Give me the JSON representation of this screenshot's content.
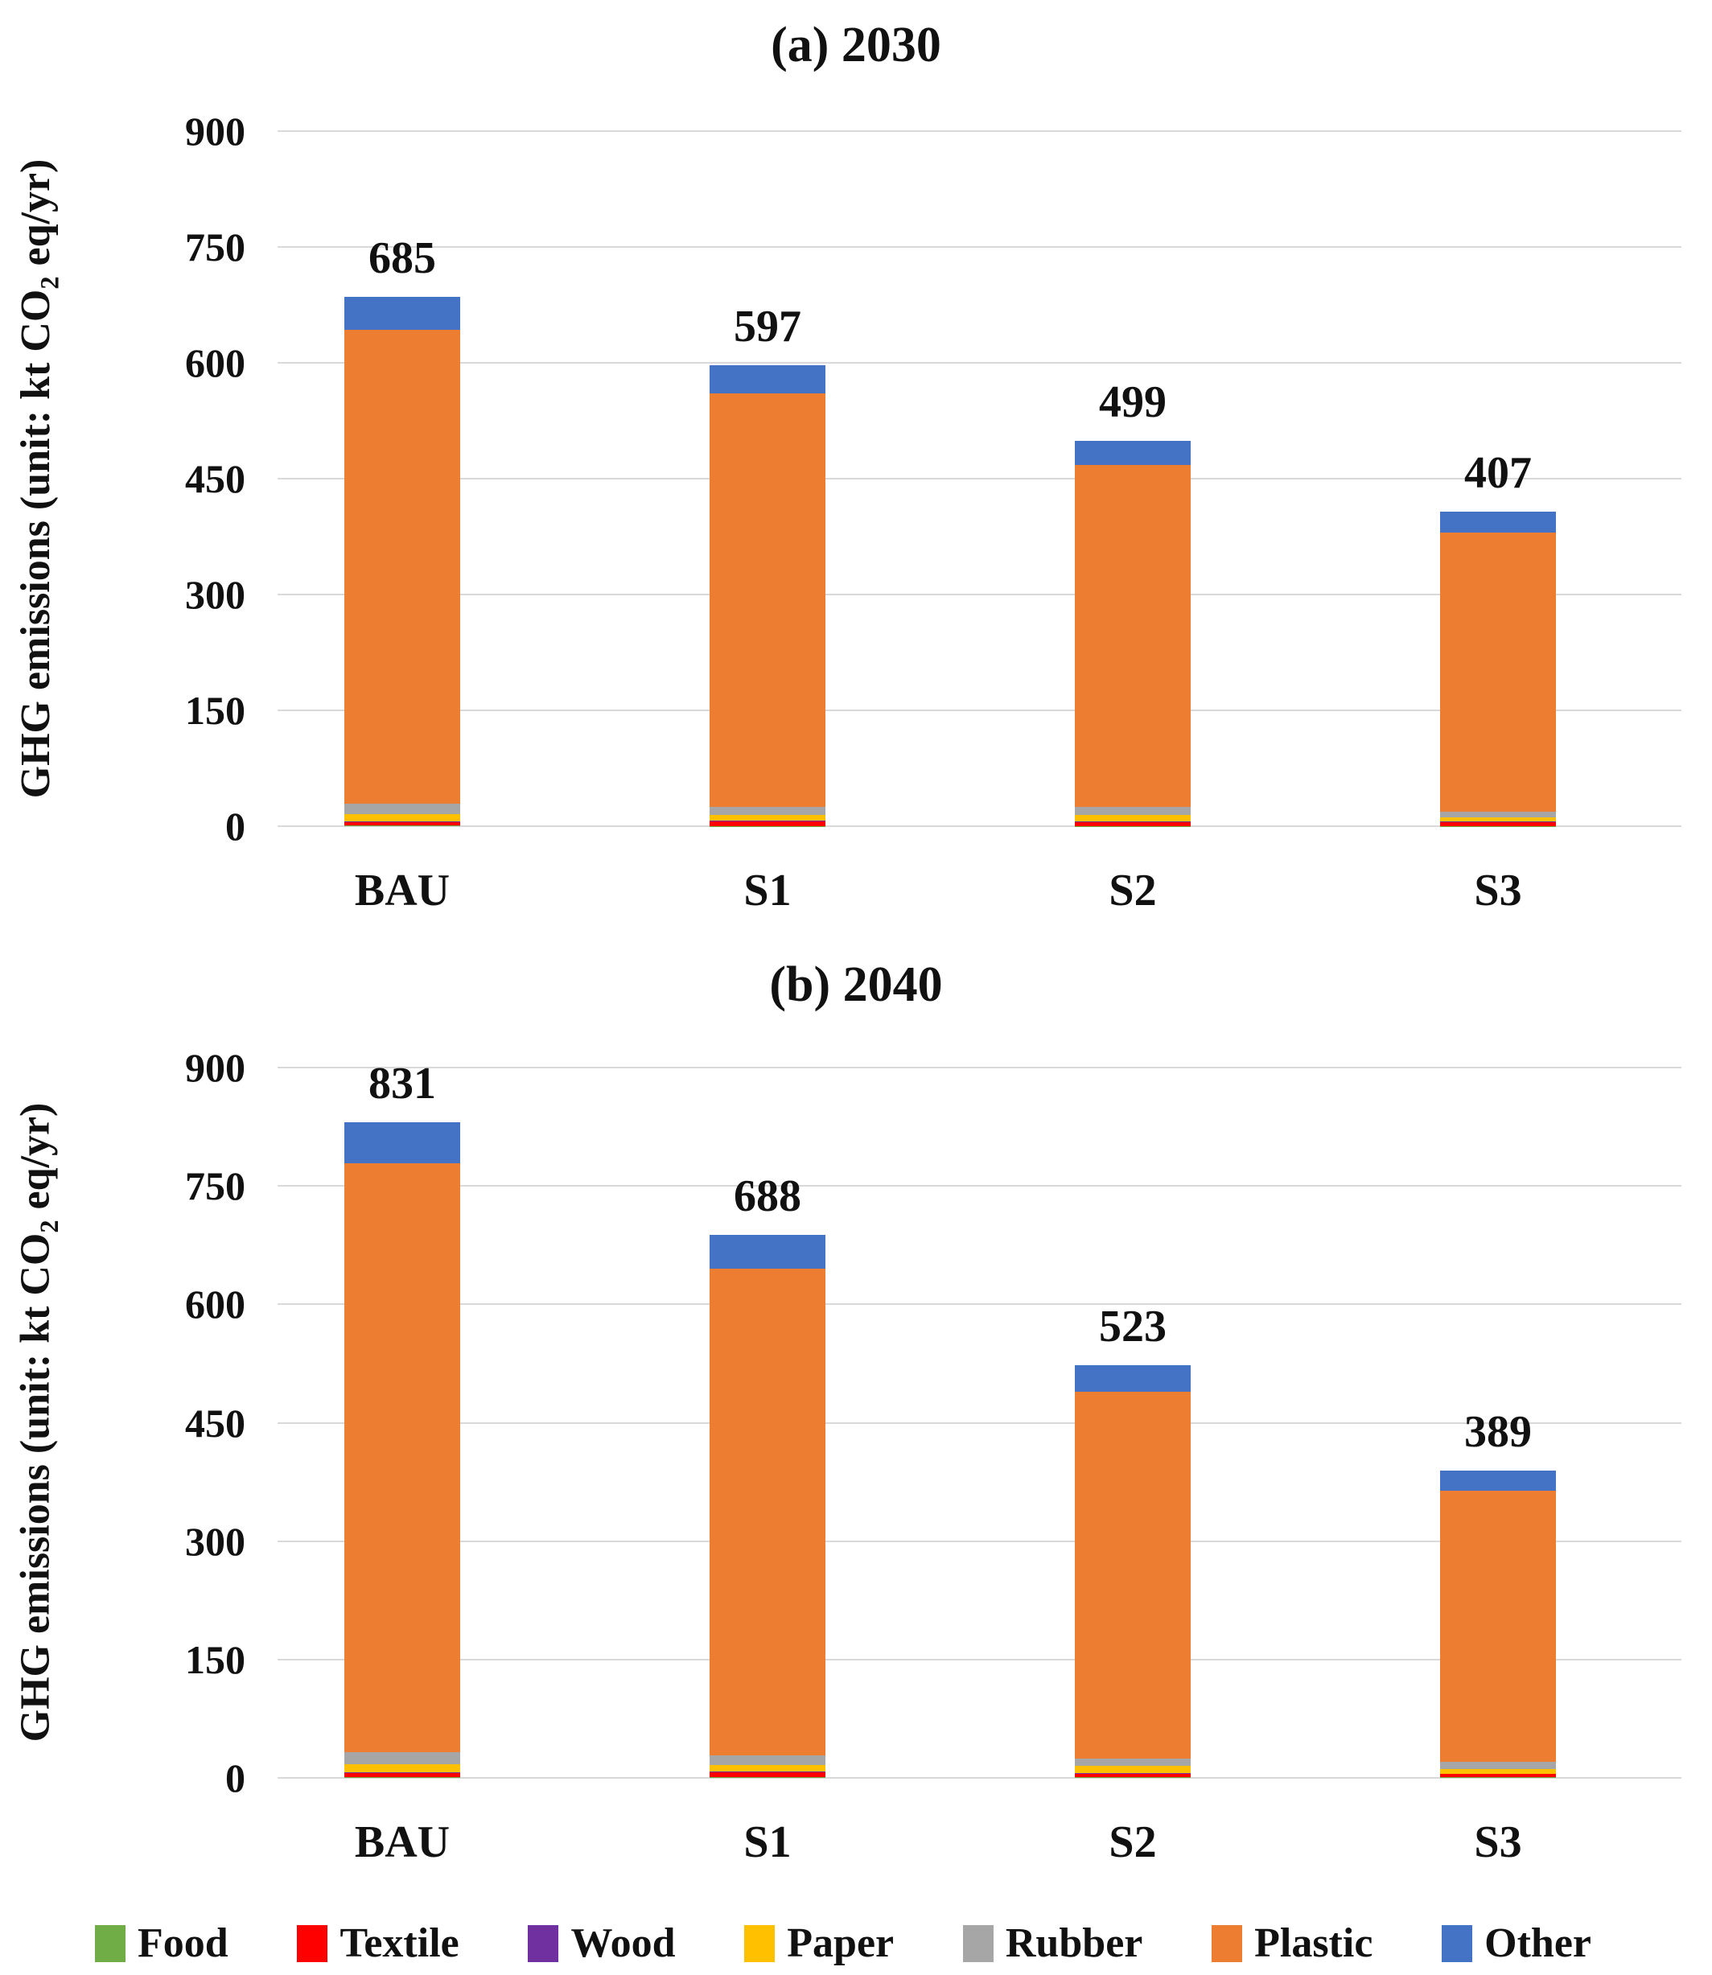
{
  "page": {
    "background": "#FFFFFF",
    "grid_color": "#D9D9D9"
  },
  "axis": {
    "ylabel_prefix": "GHG emissions (unit: kt CO",
    "ylabel_sub": "2",
    "ylabel_suffix": " eq/yr)",
    "ylabel_plain": "GHG emissions (unit: kt CO2 eq/yr)"
  },
  "legend": {
    "position": "bottom",
    "labels": [
      "Food",
      "Textile",
      "Wood",
      "Paper",
      "Rubber",
      "Plastic",
      "Other"
    ]
  },
  "chart_data": [
    {
      "panel": "a",
      "title": "(a) 2030",
      "type": "bar",
      "stacked": true,
      "categories": [
        "BAU",
        "S1",
        "S2",
        "S3"
      ],
      "totals": [
        685,
        597,
        499,
        407
      ],
      "series": [
        {
          "name": "Food",
          "color": "#70AD47",
          "values": [
            0.5,
            0.5,
            0.5,
            0.5
          ]
        },
        {
          "name": "Textile",
          "color": "#FF0000",
          "values": [
            5,
            6,
            5,
            5
          ]
        },
        {
          "name": "Wood",
          "color": "#7030A0",
          "values": [
            0.5,
            0.5,
            0.5,
            0.5
          ]
        },
        {
          "name": "Paper",
          "color": "#FFC000",
          "values": [
            10,
            8,
            9,
            5
          ]
        },
        {
          "name": "Rubber",
          "color": "#A6A6A6",
          "values": [
            13,
            10,
            10,
            8
          ]
        },
        {
          "name": "Plastic",
          "color": "#ED7D31",
          "values": [
            614,
            535,
            443,
            361
          ]
        },
        {
          "name": "Other",
          "color": "#4472C4",
          "values": [
            42,
            37,
            31,
            27
          ]
        }
      ],
      "ylabel": "GHG emissions (unit: kt CO2 eq/yr)",
      "yticks": [
        0,
        150,
        300,
        450,
        600,
        750,
        900
      ],
      "ylim": [
        0,
        900
      ],
      "grid": true,
      "legend_position": "bottom"
    },
    {
      "panel": "b",
      "title": "(b) 2040",
      "type": "bar",
      "stacked": true,
      "categories": [
        "BAU",
        "S1",
        "S2",
        "S3"
      ],
      "totals": [
        831,
        688,
        523,
        389
      ],
      "series": [
        {
          "name": "Food",
          "color": "#70AD47",
          "values": [
            0.5,
            0.5,
            0.5,
            0.5
          ]
        },
        {
          "name": "Textile",
          "color": "#FF0000",
          "values": [
            6,
            7,
            5,
            4
          ]
        },
        {
          "name": "Wood",
          "color": "#7030A0",
          "values": [
            0.5,
            0.5,
            0.5,
            0.5
          ]
        },
        {
          "name": "Paper",
          "color": "#FFC000",
          "values": [
            10,
            8,
            9,
            6
          ]
        },
        {
          "name": "Rubber",
          "color": "#A6A6A6",
          "values": [
            16,
            12,
            9,
            9
          ]
        },
        {
          "name": "Plastic",
          "color": "#ED7D31",
          "values": [
            746,
            617,
            465,
            344
          ]
        },
        {
          "name": "Other",
          "color": "#4472C4",
          "values": [
            52,
            43,
            34,
            25
          ]
        }
      ],
      "ylabel": "GHG emissions (unit: kt CO2 eq/yr)",
      "yticks": [
        0,
        150,
        300,
        450,
        600,
        750,
        900
      ],
      "ylim": [
        0,
        900
      ],
      "grid": true,
      "legend_position": "bottom"
    }
  ]
}
